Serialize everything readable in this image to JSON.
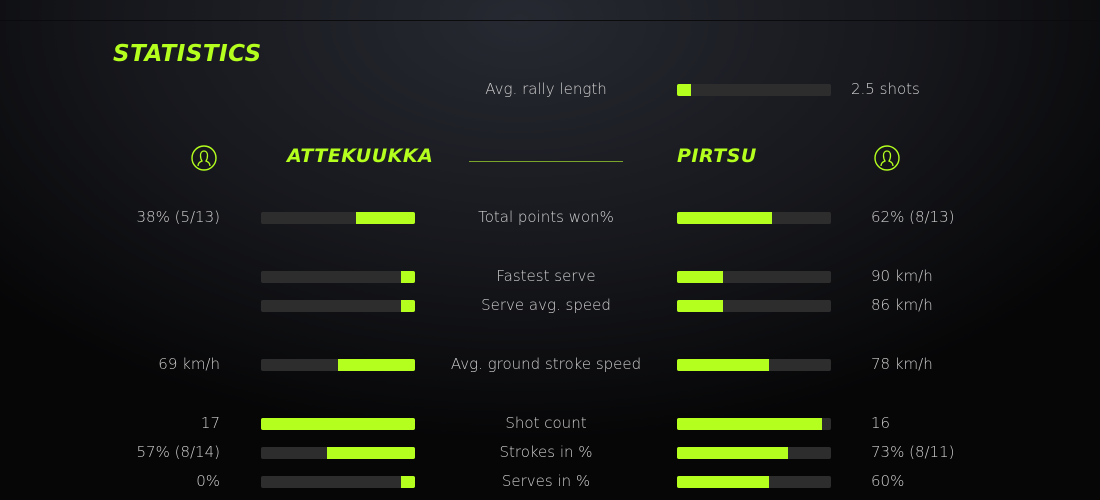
{
  "title": "STATISTICS",
  "accent_color": "#b4ff1e",
  "rally": {
    "label": "Avg. rally length",
    "value": "2.5 shots",
    "fill": 0.09
  },
  "players": {
    "left": {
      "name": "ATTEKUUKKA",
      "icon": "user-avatar-icon"
    },
    "right": {
      "name": "PIRTSU",
      "icon": "user-avatar-icon"
    }
  },
  "stats": [
    {
      "label": "Total points won%",
      "left": "38% (5/13)",
      "right": "62% (8/13)",
      "fill_left": 0.38,
      "fill_right": 0.62
    },
    {
      "label": "Fastest serve",
      "left": "",
      "right": "90 km/h",
      "fill_left": 0.09,
      "fill_right": 0.3
    },
    {
      "label": "Serve avg. speed",
      "left": "",
      "right": "86 km/h",
      "fill_left": 0.09,
      "fill_right": 0.3
    },
    {
      "label": "Avg. ground stroke speed",
      "left": "69 km/h",
      "right": "78 km/h",
      "fill_left": 0.5,
      "fill_right": 0.6
    },
    {
      "label": "Shot count",
      "left": "17",
      "right": "16",
      "fill_left": 1.0,
      "fill_right": 0.94
    },
    {
      "label": "Strokes in %",
      "left": "57% (8/14)",
      "right": "73% (8/11)",
      "fill_left": 0.57,
      "fill_right": 0.72
    },
    {
      "label": "Serves in %",
      "left": "0%",
      "right": "60%",
      "fill_left": 0.09,
      "fill_right": 0.6
    }
  ]
}
